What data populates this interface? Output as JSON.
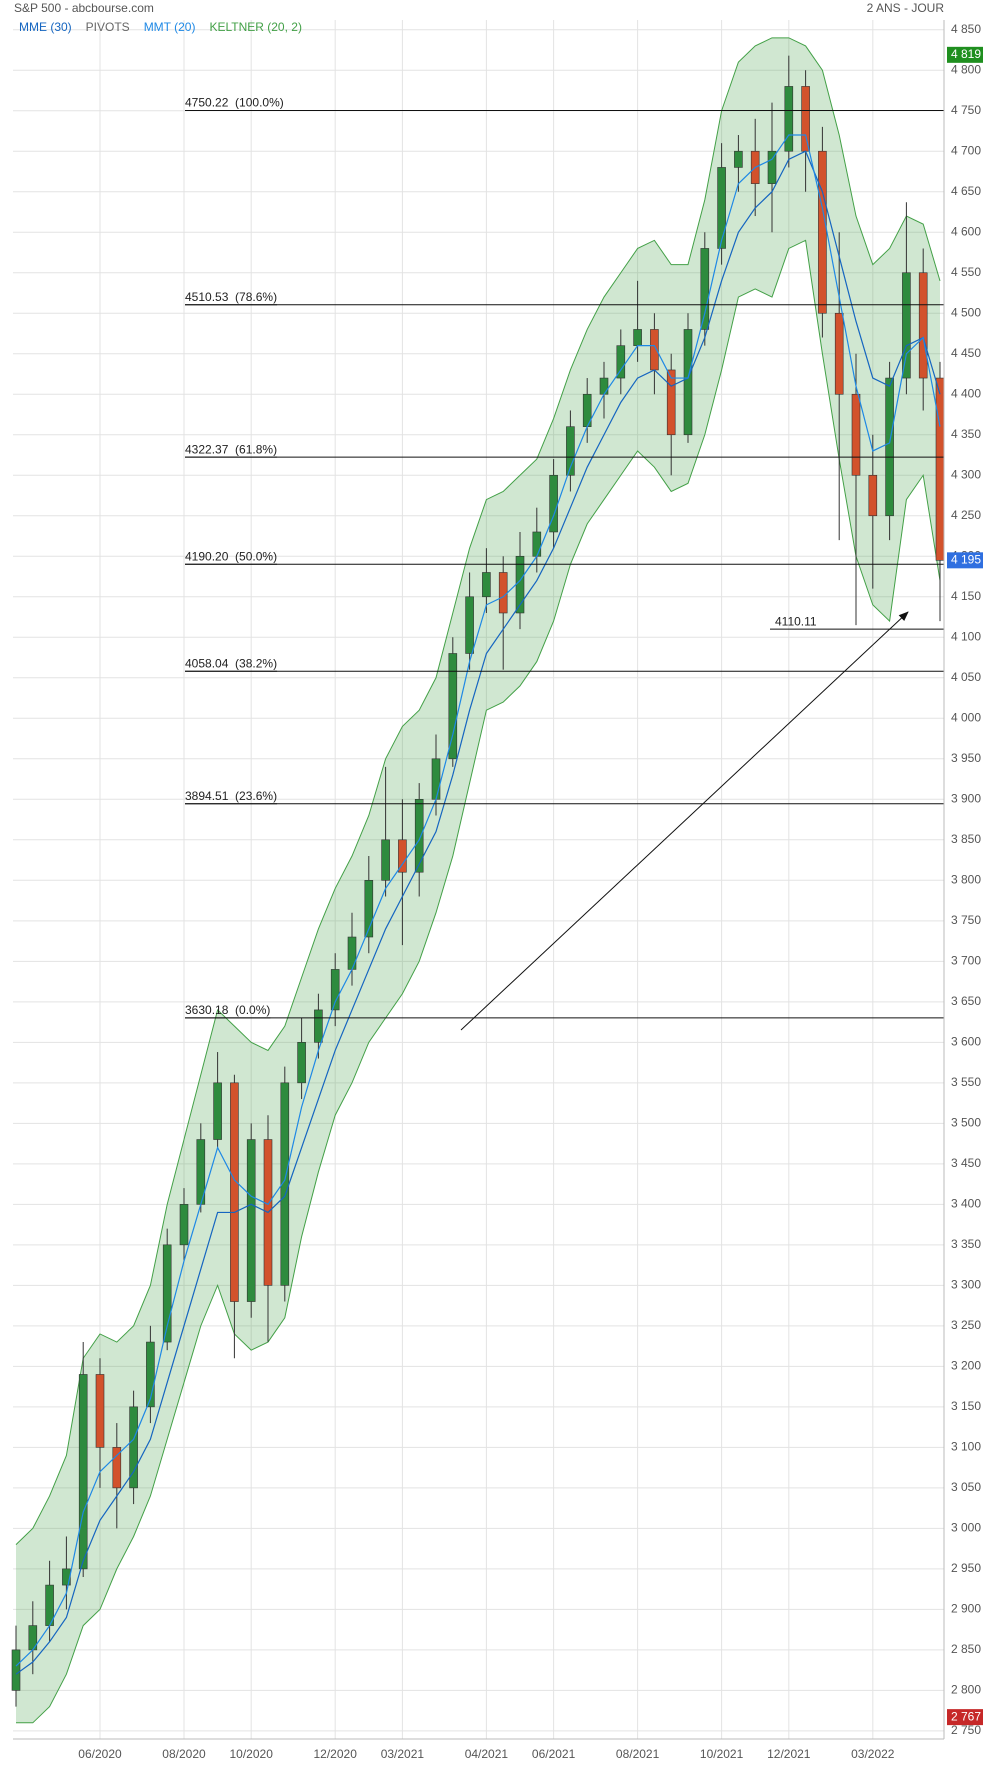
{
  "chart_data": {
    "type": "candlestick",
    "title": "S&P 500 - abcbourse.com",
    "period": "2 ANS - JOUR",
    "categories": [
      null,
      null,
      null,
      null,
      null,
      "06/2020",
      null,
      null,
      null,
      null,
      "08/2020",
      null,
      null,
      null,
      "10/2020",
      null,
      null,
      null,
      null,
      "12/2020",
      null,
      null,
      null,
      "03/2021",
      null,
      null,
      null,
      null,
      "04/2021",
      null,
      null,
      null,
      "06/2021",
      null,
      null,
      null,
      null,
      "08/2021",
      null,
      null,
      null,
      null,
      "10/2021",
      null,
      null,
      null,
      "12/2021",
      null,
      null,
      null,
      null,
      "03/2022",
      null,
      null,
      null,
      null
    ],
    "open": [
      2800,
      2850,
      2880,
      2930,
      2950,
      3190,
      3100,
      3050,
      3150,
      3230,
      3350,
      3400,
      3480,
      3550,
      3280,
      3480,
      3300,
      3550,
      3600,
      3640,
      3690,
      3730,
      3800,
      3850,
      3810,
      3900,
      3950,
      4080,
      4150,
      4180,
      4130,
      4200,
      4230,
      4300,
      4360,
      4400,
      4420,
      4460,
      4480,
      4430,
      4350,
      4480,
      4580,
      4680,
      4700,
      4660,
      4700,
      4780,
      4700,
      4500,
      4400,
      4300,
      4250,
      4420,
      4550,
      4420
    ],
    "high": [
      2880,
      2910,
      2960,
      2990,
      3230,
      3210,
      3130,
      3170,
      3250,
      3370,
      3420,
      3500,
      3588,
      3560,
      3500,
      3510,
      3570,
      3630,
      3660,
      3710,
      3760,
      3830,
      3940,
      3900,
      3920,
      3980,
      4100,
      4180,
      4210,
      4200,
      4230,
      4260,
      4320,
      4380,
      4420,
      4440,
      4480,
      4540,
      4500,
      4450,
      4500,
      4600,
      4710,
      4720,
      4740,
      4760,
      4818,
      4800,
      4730,
      4600,
      4450,
      4350,
      4440,
      4637,
      4580,
      4440
    ],
    "low": [
      2780,
      2820,
      2860,
      2900,
      2940,
      3050,
      3000,
      3030,
      3130,
      3220,
      3330,
      3390,
      3470,
      3210,
      3260,
      3230,
      3280,
      3530,
      3580,
      3620,
      3670,
      3710,
      3780,
      3720,
      3780,
      3880,
      3940,
      4060,
      4130,
      4060,
      4110,
      4180,
      4210,
      4280,
      4340,
      4370,
      4400,
      4440,
      4400,
      4300,
      4340,
      4460,
      4560,
      4650,
      4620,
      4600,
      4680,
      4650,
      4470,
      4220,
      4115,
      4160,
      4220,
      4400,
      4380,
      4120
    ],
    "close": [
      2850,
      2880,
      2930,
      2950,
      3190,
      3100,
      3050,
      3150,
      3230,
      3350,
      3400,
      3480,
      3550,
      3280,
      3480,
      3300,
      3550,
      3600,
      3640,
      3690,
      3730,
      3800,
      3850,
      3810,
      3900,
      3950,
      4080,
      4150,
      4180,
      4130,
      4200,
      4230,
      4300,
      4360,
      4400,
      4420,
      4460,
      4480,
      4430,
      4350,
      4480,
      4580,
      4680,
      4700,
      4660,
      4700,
      4780,
      4700,
      4500,
      4400,
      4300,
      4250,
      4420,
      4550,
      4420,
      4195
    ],
    "up_color": "#2e8b3e",
    "down_color": "#d2522c",
    "series": [
      {
        "name": "MME (30)",
        "color": "#1565c0",
        "values": [
          2820,
          2835,
          2860,
          2890,
          2960,
          3010,
          3040,
          3070,
          3110,
          3180,
          3250,
          3320,
          3390,
          3390,
          3400,
          3390,
          3410,
          3470,
          3530,
          3590,
          3640,
          3690,
          3740,
          3780,
          3820,
          3860,
          3930,
          4010,
          4080,
          4110,
          4140,
          4170,
          4210,
          4260,
          4310,
          4350,
          4390,
          4420,
          4430,
          4410,
          4420,
          4470,
          4540,
          4600,
          4630,
          4650,
          4690,
          4700,
          4650,
          4570,
          4490,
          4420,
          4410,
          4460,
          4470,
          4400
        ]
      },
      {
        "name": "PIVOTS",
        "color": "#666666"
      },
      {
        "name": "MMT (20)",
        "color": "#1e88e5",
        "values": [
          2830,
          2850,
          2880,
          2920,
          3020,
          3070,
          3090,
          3110,
          3160,
          3250,
          3330,
          3400,
          3470,
          3430,
          3410,
          3400,
          3430,
          3520,
          3590,
          3650,
          3690,
          3740,
          3790,
          3820,
          3850,
          3900,
          3980,
          4070,
          4140,
          4150,
          4170,
          4200,
          4250,
          4310,
          4360,
          4400,
          4430,
          4460,
          4460,
          4420,
          4420,
          4500,
          4590,
          4660,
          4680,
          4690,
          4720,
          4720,
          4630,
          4520,
          4410,
          4330,
          4340,
          4450,
          4470,
          4360
        ]
      },
      {
        "name": "KELTNER (20, 2)",
        "color": "#43a047",
        "upper": [
          2980,
          3000,
          3040,
          3090,
          3210,
          3240,
          3230,
          3250,
          3300,
          3400,
          3480,
          3560,
          3640,
          3620,
          3600,
          3590,
          3620,
          3680,
          3740,
          3790,
          3830,
          3880,
          3950,
          3990,
          4010,
          4050,
          4130,
          4210,
          4270,
          4280,
          4300,
          4320,
          4370,
          4430,
          4480,
          4520,
          4550,
          4580,
          4590,
          4560,
          4560,
          4640,
          4750,
          4810,
          4830,
          4840,
          4840,
          4830,
          4800,
          4720,
          4620,
          4560,
          4580,
          4620,
          4610,
          4540
        ],
        "lower": [
          2760,
          2760,
          2780,
          2820,
          2880,
          2900,
          2950,
          2990,
          3040,
          3110,
          3180,
          3250,
          3300,
          3240,
          3220,
          3230,
          3260,
          3360,
          3440,
          3510,
          3550,
          3600,
          3630,
          3660,
          3700,
          3760,
          3830,
          3920,
          4010,
          4020,
          4040,
          4070,
          4120,
          4190,
          4240,
          4270,
          4300,
          4330,
          4310,
          4280,
          4290,
          4350,
          4430,
          4520,
          4530,
          4520,
          4580,
          4590,
          4450,
          4320,
          4200,
          4140,
          4120,
          4270,
          4300,
          4170
        ]
      }
    ],
    "fibonacci": [
      {
        "value": 4750.22,
        "label": "4750.22  (100.0%)"
      },
      {
        "value": 4510.53,
        "label": "4510.53  (78.6%)"
      },
      {
        "value": 4322.37,
        "label": "4322.37  (61.8%)"
      },
      {
        "value": 4190.2,
        "label": "4190.20  (50.0%)"
      },
      {
        "value": 4058.04,
        "label": "4058.04  (38.2%)"
      },
      {
        "value": 3894.51,
        "label": "3894.51  (23.6%)"
      },
      {
        "value": 3630.18,
        "label": "3630.18  (0.0%)"
      }
    ],
    "support_line": 4110.11,
    "price_labels": [
      {
        "value": 4819,
        "label": "4 819",
        "color": "#1f8f1f"
      },
      {
        "value": 4195,
        "label": "4 195",
        "color": "#2f6fe0"
      },
      {
        "value": 2767,
        "label": "2 767",
        "color": "#c62828"
      }
    ],
    "ylim": [
      2740,
      4862
    ],
    "yticks": [
      {
        "value": 2750,
        "label": "2 750"
      },
      {
        "value": 2800,
        "label": "2 800"
      },
      {
        "value": 2850,
        "label": "2 850"
      },
      {
        "value": 2900,
        "label": "2 900"
      },
      {
        "value": 2950,
        "label": "2 950"
      },
      {
        "value": 3000,
        "label": "3 000"
      },
      {
        "value": 3050,
        "label": "3 050"
      },
      {
        "value": 3100,
        "label": "3 100"
      },
      {
        "value": 3150,
        "label": "3 150"
      },
      {
        "value": 3200,
        "label": "3 200"
      },
      {
        "value": 3250,
        "label": "3 250"
      },
      {
        "value": 3300,
        "label": "3 300"
      },
      {
        "value": 3350,
        "label": "3 350"
      },
      {
        "value": 3400,
        "label": "3 400"
      },
      {
        "value": 3450,
        "label": "3 450"
      },
      {
        "value": 3500,
        "label": "3 500"
      },
      {
        "value": 3550,
        "label": "3 550"
      },
      {
        "value": 3600,
        "label": "3 600"
      },
      {
        "value": 3650,
        "label": "3 650"
      },
      {
        "value": 3700,
        "label": "3 700"
      },
      {
        "value": 3750,
        "label": "3 750"
      },
      {
        "value": 3800,
        "label": "3 800"
      },
      {
        "value": 3850,
        "label": "3 850"
      },
      {
        "value": 3900,
        "label": "3 900"
      },
      {
        "value": 3950,
        "label": "3 950"
      },
      {
        "value": 4000,
        "label": "4 000"
      },
      {
        "value": 4050,
        "label": "4 050"
      },
      {
        "value": 4100,
        "label": "4 100"
      },
      {
        "value": 4150,
        "label": "4 150"
      },
      {
        "value": 4200,
        "label": "4 200"
      },
      {
        "value": 4250,
        "label": "4 250"
      },
      {
        "value": 4300,
        "label": "4 300"
      },
      {
        "value": 4350,
        "label": "4 350"
      },
      {
        "value": 4400,
        "label": "4 400"
      },
      {
        "value": 4450,
        "label": "4 450"
      },
      {
        "value": 4500,
        "label": "4 500"
      },
      {
        "value": 4550,
        "label": "4 550"
      },
      {
        "value": 4600,
        "label": "4 600"
      },
      {
        "value": 4650,
        "label": "4 650"
      },
      {
        "value": 4700,
        "label": "4 700"
      },
      {
        "value": 4750,
        "label": "4 750"
      },
      {
        "value": 4800,
        "label": "4 800"
      },
      {
        "value": 4850,
        "label": "4 850"
      }
    ],
    "grid": true
  }
}
